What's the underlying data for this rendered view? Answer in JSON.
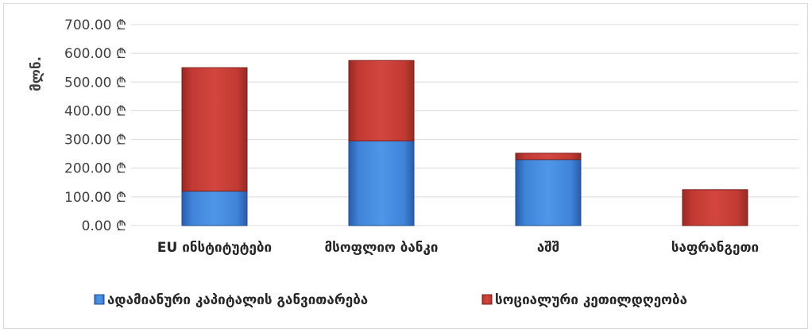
{
  "chart_data": {
    "type": "bar",
    "stacked": true,
    "ylabel": "მლნ.",
    "ylim": [
      0,
      700
    ],
    "y_ticks": [
      "0.00 ₾",
      "100.00 ₾",
      "200.00 ₾",
      "300.00 ₾",
      "400.00 ₾",
      "500.00 ₾",
      "600.00 ₾",
      "700.00 ₾"
    ],
    "y_tick_values": [
      0,
      100,
      200,
      300,
      400,
      500,
      600,
      700
    ],
    "grid": true,
    "legend_position": "bottom",
    "categories": [
      "EU ინსტიტუტები",
      "მსოფლიო ბანკი",
      "აშშ",
      "საფრანგეთი"
    ],
    "series": [
      {
        "name": "ადამიანური კაპიტალის განვითარება",
        "values": [
          120,
          295,
          230,
          0
        ],
        "color": "#3a7bd5"
      },
      {
        "name": "სოციალური კეთილდღეობა",
        "values": [
          430,
          280,
          22,
          125
        ],
        "color": "#c0392b"
      }
    ]
  }
}
